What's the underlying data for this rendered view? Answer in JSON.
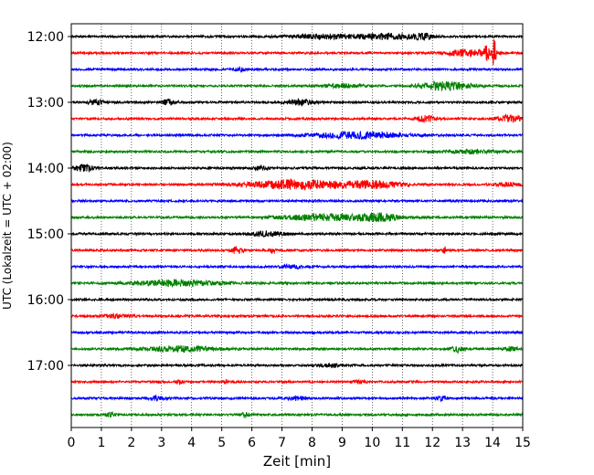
{
  "chart_data": {
    "type": "line",
    "title": "",
    "xlabel": "Zeit  [min]",
    "ylabel": "UTC (Lokalzeit = UTC + 02:00)",
    "xlim": [
      0,
      15
    ],
    "xticks": [
      0,
      1,
      2,
      3,
      4,
      5,
      6,
      7,
      8,
      9,
      10,
      11,
      12,
      13,
      14,
      15
    ],
    "xtick_labels": [
      "0",
      "1",
      "2",
      "3",
      "4",
      "5",
      "6",
      "7",
      "8",
      "9",
      "10",
      "11",
      "12",
      "13",
      "14",
      "15"
    ],
    "ytick_labels": [
      "12:00",
      "13:00",
      "14:00",
      "15:00",
      "16:00",
      "17:00"
    ],
    "ytick_traces": [
      0,
      4,
      8,
      12,
      16,
      20
    ],
    "grid_x": true,
    "grid_y": false,
    "color_cycle": [
      "#000000",
      "#ff0000",
      "#0000ff",
      "#008000"
    ],
    "traces_per_hour": 4,
    "minutes_per_trace": 15,
    "traces": [
      {
        "time": "12:00",
        "color": "#000000",
        "bursts": [
          {
            "t": 8.4,
            "w": 1.2,
            "a": 2.2
          },
          {
            "t": 10.4,
            "w": 0.9,
            "a": 3.0
          },
          {
            "t": 11.7,
            "w": 0.3,
            "a": 3.2
          }
        ]
      },
      {
        "time": "12:15",
        "color": "#ff0000",
        "bursts": [
          {
            "t": 13.2,
            "w": 0.8,
            "a": 3.5
          },
          {
            "t": 14.05,
            "w": 0.06,
            "a": 15
          },
          {
            "t": 13.8,
            "w": 0.08,
            "a": 8
          }
        ]
      },
      {
        "time": "12:30",
        "color": "#0000ff",
        "bursts": [
          {
            "t": 5.6,
            "w": 0.2,
            "a": 2.0
          }
        ]
      },
      {
        "time": "12:45",
        "color": "#008000",
        "bursts": [
          {
            "t": 9.0,
            "w": 0.6,
            "a": 2.0
          },
          {
            "t": 12.4,
            "w": 0.8,
            "a": 4.5
          }
        ]
      },
      {
        "time": "13:00",
        "color": "#000000",
        "bursts": [
          {
            "t": 0.8,
            "w": 0.3,
            "a": 2.2
          },
          {
            "t": 3.2,
            "w": 0.2,
            "a": 3.0
          },
          {
            "t": 7.6,
            "w": 0.5,
            "a": 2.5
          }
        ]
      },
      {
        "time": "13:15",
        "color": "#ff0000",
        "bursts": [
          {
            "t": 11.8,
            "w": 0.3,
            "a": 3.5
          },
          {
            "t": 14.6,
            "w": 0.35,
            "a": 4.5
          }
        ]
      },
      {
        "time": "13:30",
        "color": "#0000ff",
        "bursts": [
          {
            "t": 9.5,
            "w": 1.5,
            "a": 3.5
          }
        ]
      },
      {
        "time": "13:45",
        "color": "#008000",
        "bursts": [
          {
            "t": 13.3,
            "w": 0.9,
            "a": 1.8
          }
        ]
      },
      {
        "time": "14:00",
        "color": "#000000",
        "bursts": [
          {
            "t": 0.4,
            "w": 0.35,
            "a": 3.2
          },
          {
            "t": 6.3,
            "w": 0.2,
            "a": 2.0
          }
        ]
      },
      {
        "time": "14:15",
        "color": "#ff0000",
        "bursts": [
          {
            "t": 7.5,
            "w": 1.6,
            "a": 5.0
          },
          {
            "t": 10.0,
            "w": 1.0,
            "a": 3.5
          },
          {
            "t": 14.5,
            "w": 0.4,
            "a": 2.0
          }
        ]
      },
      {
        "time": "14:30",
        "color": "#0000ff",
        "bursts": []
      },
      {
        "time": "14:45",
        "color": "#008000",
        "bursts": [
          {
            "t": 8.5,
            "w": 1.5,
            "a": 3.5
          },
          {
            "t": 10.3,
            "w": 0.6,
            "a": 3.5
          }
        ]
      },
      {
        "time": "15:00",
        "color": "#000000",
        "bursts": [
          {
            "t": 6.5,
            "w": 0.6,
            "a": 2.5
          }
        ]
      },
      {
        "time": "15:15",
        "color": "#ff0000",
        "bursts": [
          {
            "t": 5.5,
            "w": 0.2,
            "a": 3.5
          },
          {
            "t": 6.7,
            "w": 0.06,
            "a": 4.0
          },
          {
            "t": 12.4,
            "w": 0.05,
            "a": 5.0
          }
        ]
      },
      {
        "time": "15:30",
        "color": "#0000ff",
        "bursts": [
          {
            "t": 7.3,
            "w": 0.4,
            "a": 1.8
          }
        ]
      },
      {
        "time": "15:45",
        "color": "#008000",
        "bursts": [
          {
            "t": 3.5,
            "w": 1.5,
            "a": 2.8
          }
        ]
      },
      {
        "time": "16:00",
        "color": "#000000",
        "bursts": []
      },
      {
        "time": "16:15",
        "color": "#ff0000",
        "bursts": [
          {
            "t": 1.5,
            "w": 0.5,
            "a": 1.8
          }
        ]
      },
      {
        "time": "16:30",
        "color": "#0000ff",
        "bursts": []
      },
      {
        "time": "16:45",
        "color": "#008000",
        "bursts": [
          {
            "t": 3.7,
            "w": 1.2,
            "a": 2.8
          },
          {
            "t": 12.8,
            "w": 0.2,
            "a": 3.5
          },
          {
            "t": 14.6,
            "w": 0.3,
            "a": 2.0
          }
        ]
      },
      {
        "time": "17:00",
        "color": "#000000",
        "bursts": [
          {
            "t": 8.6,
            "w": 0.3,
            "a": 1.8
          }
        ]
      },
      {
        "time": "17:15",
        "color": "#ff0000",
        "bursts": [
          {
            "t": 3.6,
            "w": 0.1,
            "a": 2.5
          },
          {
            "t": 5.1,
            "w": 0.1,
            "a": 2.0
          },
          {
            "t": 9.6,
            "w": 0.2,
            "a": 1.8
          }
        ]
      },
      {
        "time": "17:30",
        "color": "#0000ff",
        "bursts": [
          {
            "t": 2.8,
            "w": 0.3,
            "a": 2.0
          },
          {
            "t": 7.5,
            "w": 0.3,
            "a": 2.0
          },
          {
            "t": 12.3,
            "w": 0.2,
            "a": 1.8
          }
        ]
      },
      {
        "time": "17:45",
        "color": "#008000",
        "bursts": [
          {
            "t": 1.3,
            "w": 0.15,
            "a": 2.0
          },
          {
            "t": 5.8,
            "w": 0.2,
            "a": 1.8
          }
        ]
      }
    ]
  }
}
